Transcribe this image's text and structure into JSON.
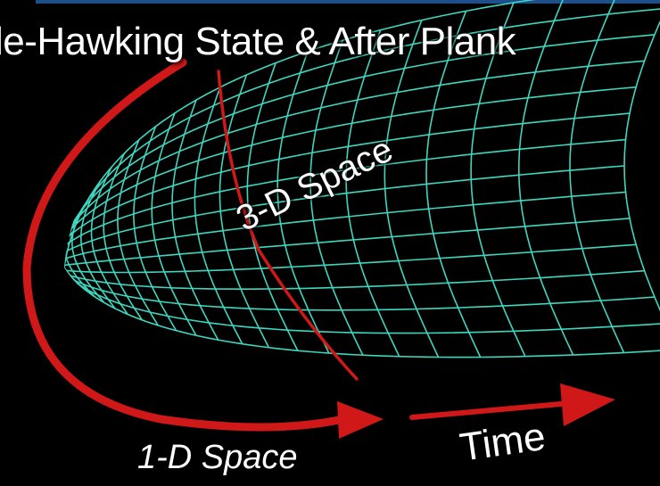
{
  "title": "le-Hawking State & After Plank",
  "labels": {
    "three_d_space": "3-D Space",
    "one_d_space": "1-D Space",
    "time": "Time"
  },
  "colors": {
    "grid": "#3fd6c0",
    "curve": "#d01818",
    "background": "#000000",
    "top_bar": "#1f4f8a",
    "text": "#ffffff"
  }
}
